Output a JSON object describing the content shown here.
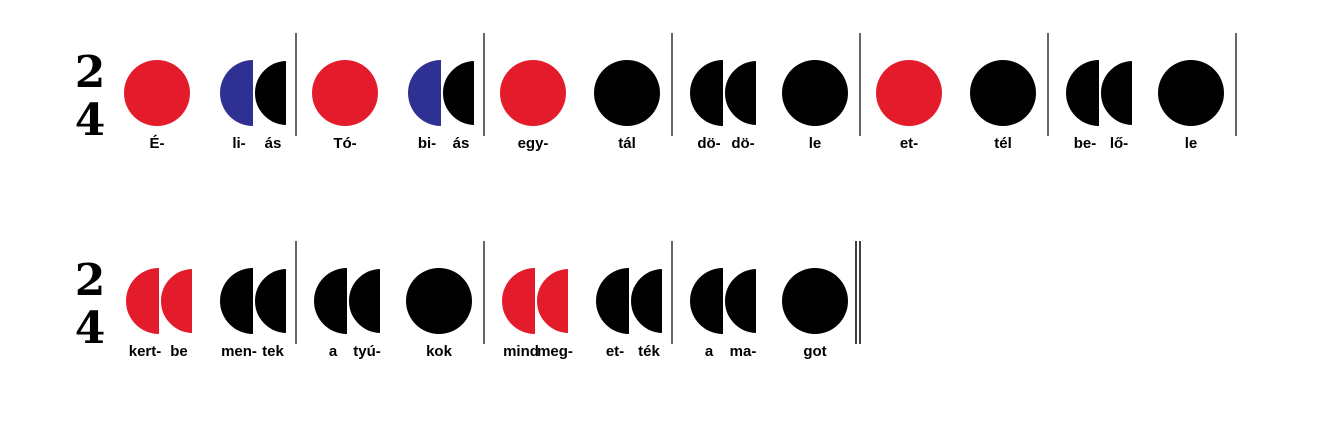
{
  "colors": {
    "red": "#e31b2a",
    "blue": "#2e3192",
    "black": "#000000"
  },
  "time_signature": {
    "top": "2",
    "bottom": "4"
  },
  "rows": [
    {
      "time_signature": {
        "top": "2",
        "bottom": "4"
      },
      "end": "single",
      "measures": [
        {
          "beats": [
            {
              "kind": "ta",
              "color": "red",
              "syllables": [
                "É-"
              ]
            },
            {
              "kind": "titi",
              "colors": [
                "blue",
                "black"
              ],
              "syllables": [
                "li-",
                "ás"
              ]
            }
          ]
        },
        {
          "beats": [
            {
              "kind": "ta",
              "color": "red",
              "syllables": [
                "Tó-"
              ]
            },
            {
              "kind": "titi",
              "colors": [
                "blue",
                "black"
              ],
              "syllables": [
                "bi-",
                "ás"
              ]
            }
          ]
        },
        {
          "beats": [
            {
              "kind": "ta",
              "color": "red",
              "syllables": [
                "egy-"
              ]
            },
            {
              "kind": "ta",
              "color": "black",
              "syllables": [
                "tál"
              ]
            }
          ]
        },
        {
          "beats": [
            {
              "kind": "titi",
              "colors": [
                "black",
                "black"
              ],
              "syllables": [
                "dö-",
                "dö-"
              ]
            },
            {
              "kind": "ta",
              "color": "black",
              "syllables": [
                "le"
              ]
            }
          ]
        },
        {
          "beats": [
            {
              "kind": "ta",
              "color": "red",
              "syllables": [
                "et-"
              ]
            },
            {
              "kind": "ta",
              "color": "black",
              "syllables": [
                "tél"
              ]
            }
          ]
        },
        {
          "beats": [
            {
              "kind": "titi",
              "colors": [
                "black",
                "black"
              ],
              "syllables": [
                "be-",
                "lő-"
              ]
            },
            {
              "kind": "ta",
              "color": "black",
              "syllables": [
                "le"
              ]
            }
          ]
        }
      ]
    },
    {
      "time_signature": {
        "top": "2",
        "bottom": "4"
      },
      "end": "double",
      "measures": [
        {
          "beats": [
            {
              "kind": "titi",
              "colors": [
                "red",
                "red"
              ],
              "syllables": [
                "kert-",
                "be"
              ]
            },
            {
              "kind": "titi",
              "colors": [
                "black",
                "black"
              ],
              "syllables": [
                "men-",
                "tek"
              ]
            }
          ]
        },
        {
          "beats": [
            {
              "kind": "titi",
              "colors": [
                "black",
                "black"
              ],
              "syllables": [
                "a",
                "tyú-"
              ]
            },
            {
              "kind": "ta",
              "color": "black",
              "syllables": [
                "kok"
              ]
            }
          ]
        },
        {
          "beats": [
            {
              "kind": "titi",
              "colors": [
                "red",
                "red"
              ],
              "syllables": [
                "mind",
                "meg-"
              ]
            },
            {
              "kind": "titi",
              "colors": [
                "black",
                "black"
              ],
              "syllables": [
                "et-",
                "ték"
              ]
            }
          ]
        },
        {
          "beats": [
            {
              "kind": "titi",
              "colors": [
                "black",
                "black"
              ],
              "syllables": [
                "a",
                "ma-"
              ]
            },
            {
              "kind": "ta",
              "color": "black",
              "syllables": [
                "got"
              ]
            }
          ]
        }
      ]
    }
  ]
}
